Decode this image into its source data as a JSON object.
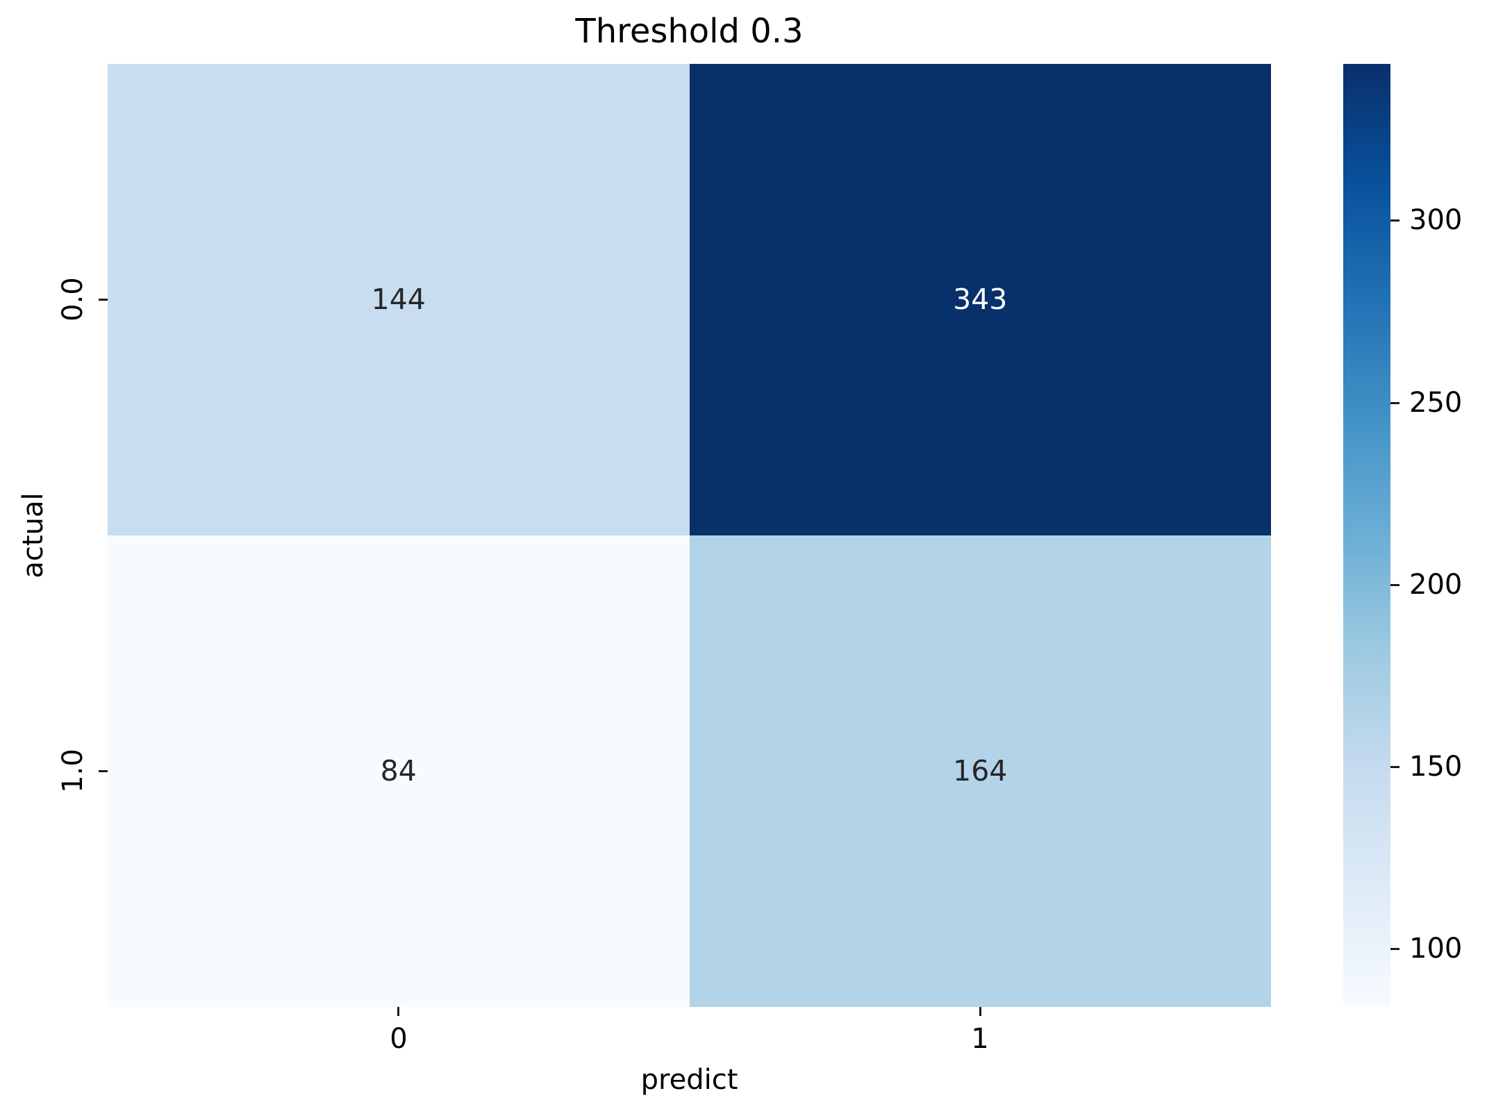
{
  "chart_data": {
    "type": "heatmap",
    "title": "Threshold 0.3",
    "xlabel": "predict",
    "ylabel": "actual",
    "x_tick_labels": [
      "0",
      "1"
    ],
    "y_tick_labels": [
      "0.0",
      "1.0"
    ],
    "matrix": [
      [
        144,
        343
      ],
      [
        84,
        164
      ]
    ],
    "vmin": 84,
    "vmax": 343,
    "colormap": "Blues",
    "grid": false,
    "legend_position": "none",
    "cell_colors": [
      [
        "#c9ddf0",
        "#08306b"
      ],
      [
        "#f7fbff",
        "#b3d3e8"
      ]
    ],
    "annot_colors": [
      [
        "#262626",
        "#ffffff"
      ],
      [
        "#262626",
        "#262626"
      ]
    ],
    "colorbar": {
      "ticks": [
        300,
        250,
        200,
        150,
        100
      ],
      "gradient_stops_top_to_bottom": [
        "#08306b",
        "#08519c",
        "#2171b5",
        "#4292c6",
        "#6baed6",
        "#9ecae1",
        "#c6dbef",
        "#deebf7",
        "#f7fbff"
      ]
    }
  },
  "colors": {
    "background": "#ffffff",
    "tick_color": "#1a1a1a",
    "title_color": "#000000"
  }
}
